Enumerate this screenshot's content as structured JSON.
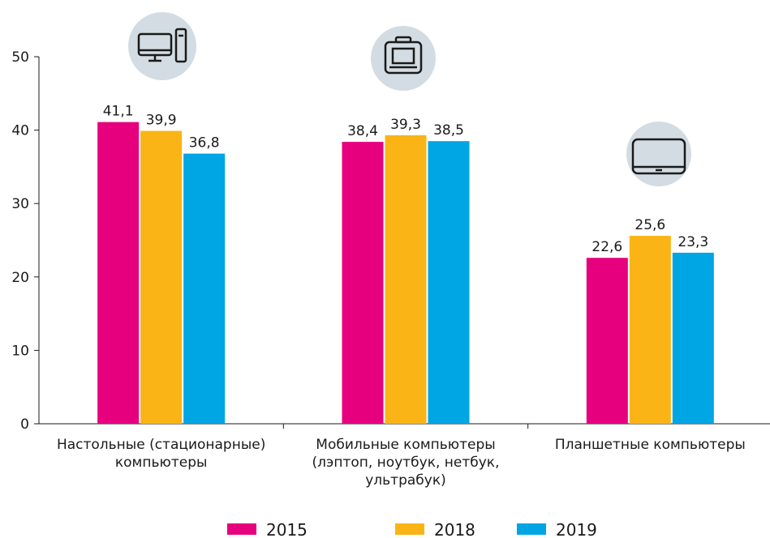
{
  "chart_data": {
    "type": "bar",
    "categories": [
      "Настольные (стационарные) компьютеры",
      "Мобильные компьютеры (лэптоп, ноутбук, нетбук, ультрабук)",
      "Планшетные компьютеры"
    ],
    "series": [
      {
        "name": "2015",
        "color": "#e6007e",
        "values": [
          41.1,
          38.4,
          22.6
        ],
        "value_labels": [
          "41,1",
          "38,4",
          "22,6"
        ]
      },
      {
        "name": "2018",
        "color": "#fbb416",
        "values": [
          39.9,
          39.3,
          25.6
        ],
        "value_labels": [
          "39,9",
          "39,3",
          "25,6"
        ]
      },
      {
        "name": "2019",
        "color": "#00a5e3",
        "values": [
          36.8,
          38.5,
          23.3
        ],
        "value_labels": [
          "36,8",
          "38,5",
          "23,3"
        ]
      }
    ],
    "ylim": [
      0,
      50
    ],
    "yticks": [
      0,
      10,
      20,
      30,
      40,
      50
    ],
    "grid": false,
    "legend": "bottom"
  }
}
